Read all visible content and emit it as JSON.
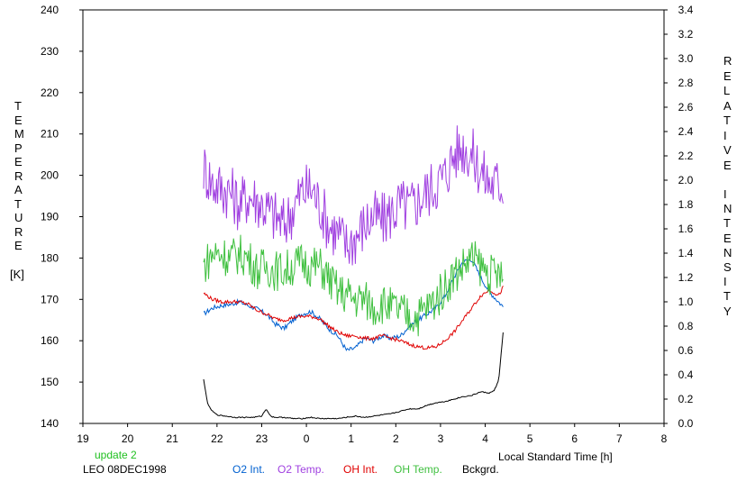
{
  "chart_data": {
    "type": "line",
    "title": "",
    "left_axis": {
      "label_letters": [
        "T",
        "E",
        "M",
        "P",
        "E",
        "R",
        "A",
        "T",
        "U",
        "R",
        "E"
      ],
      "unit": "[K]",
      "range": [
        140,
        240
      ],
      "ticks": [
        "140",
        "150",
        "160",
        "170",
        "180",
        "190",
        "200",
        "210",
        "220",
        "230",
        "240"
      ]
    },
    "right_axis": {
      "label_word1": [
        "R",
        "E",
        "L",
        "A",
        "T",
        "I",
        "V",
        "E"
      ],
      "label_word2": [
        "I",
        "N",
        "T",
        "E",
        "N",
        "S",
        "I",
        "T",
        "Y"
      ],
      "range": [
        0.0,
        3.4
      ],
      "ticks": [
        "0.0",
        "0.2",
        "0.4",
        "0.6",
        "0.8",
        "1.0",
        "1.2",
        "1.4",
        "1.6",
        "1.8",
        "2.0",
        "2.2",
        "2.4",
        "2.6",
        "2.8",
        "3.0",
        "3.2",
        "3.4"
      ]
    },
    "x_axis": {
      "label": "Local Standard Time [h]",
      "range": [
        19,
        32
      ],
      "ticks": [
        "19",
        "20",
        "21",
        "22",
        "23",
        "0",
        "1",
        "2",
        "3",
        "4",
        "5",
        "6",
        "7",
        "8"
      ]
    },
    "series": [
      {
        "name": "O2 Int.",
        "axis": "right",
        "color": "#0060d0",
        "x": [
          21.7,
          21.9,
          22.1,
          22.3,
          22.5,
          22.7,
          22.9,
          23.1,
          23.3,
          23.5,
          23.7,
          23.9,
          24.1,
          24.3,
          24.5,
          24.7,
          24.9,
          25.1,
          25.3,
          25.5,
          25.7,
          25.9,
          26.1,
          26.3,
          26.5,
          26.7,
          26.9,
          27.1,
          27.3,
          27.5,
          27.7,
          27.9,
          28.1,
          28.3,
          28.4
        ],
        "y": [
          0.9,
          0.95,
          0.97,
          0.98,
          1.0,
          0.97,
          0.94,
          0.9,
          0.82,
          0.78,
          0.85,
          0.9,
          0.92,
          0.86,
          0.78,
          0.72,
          0.6,
          0.62,
          0.7,
          0.68,
          0.72,
          0.7,
          0.72,
          0.8,
          0.85,
          0.9,
          0.95,
          1.05,
          1.2,
          1.33,
          1.35,
          1.2,
          1.08,
          1.0,
          0.96
        ]
      },
      {
        "name": "O2 Temp.",
        "axis": "left",
        "color": "#a040e0",
        "x": [
          21.7,
          21.9,
          22.1,
          22.3,
          22.5,
          22.7,
          22.9,
          23.1,
          23.3,
          23.5,
          23.7,
          23.9,
          24.1,
          24.3,
          24.5,
          24.7,
          24.9,
          25.1,
          25.3,
          25.5,
          25.7,
          25.9,
          26.1,
          26.3,
          26.5,
          26.7,
          26.9,
          27.1,
          27.3,
          27.5,
          27.7,
          27.9,
          28.1,
          28.3,
          28.4
        ],
        "y": [
          202,
          198,
          197,
          196,
          193,
          195,
          194,
          192,
          190,
          188,
          192,
          196,
          197,
          193,
          188,
          186,
          183,
          185,
          188,
          190,
          189,
          191,
          193,
          192,
          194,
          196,
          198,
          200,
          205,
          207,
          205,
          201,
          198,
          198,
          198
        ]
      },
      {
        "name": "OH Int.",
        "axis": "right",
        "color": "#e00000",
        "x": [
          21.7,
          21.9,
          22.1,
          22.3,
          22.5,
          22.7,
          22.9,
          23.1,
          23.3,
          23.5,
          23.7,
          23.9,
          24.1,
          24.3,
          24.5,
          24.7,
          24.9,
          25.1,
          25.3,
          25.5,
          25.7,
          25.9,
          26.1,
          26.3,
          26.5,
          26.7,
          26.9,
          27.1,
          27.3,
          27.5,
          27.7,
          27.9,
          28.1,
          28.3,
          28.4
        ],
        "y": [
          1.07,
          1.02,
          1.0,
          1.0,
          1.0,
          0.98,
          0.93,
          0.9,
          0.86,
          0.85,
          0.87,
          0.88,
          0.88,
          0.86,
          0.8,
          0.75,
          0.72,
          0.72,
          0.7,
          0.7,
          0.72,
          0.7,
          0.68,
          0.65,
          0.63,
          0.62,
          0.63,
          0.68,
          0.75,
          0.85,
          0.95,
          1.05,
          1.1,
          1.05,
          1.12
        ]
      },
      {
        "name": "OH Temp.",
        "axis": "left",
        "color": "#40c040",
        "x": [
          21.7,
          21.9,
          22.1,
          22.3,
          22.5,
          22.7,
          22.9,
          23.1,
          23.3,
          23.5,
          23.7,
          23.9,
          24.1,
          24.3,
          24.5,
          24.7,
          24.9,
          25.1,
          25.3,
          25.5,
          25.7,
          25.9,
          26.1,
          26.3,
          26.5,
          26.7,
          26.9,
          27.1,
          27.3,
          27.5,
          27.7,
          27.9,
          28.1,
          28.3,
          28.4
        ],
        "y": [
          178,
          181,
          181,
          180,
          181,
          180,
          177,
          178,
          177,
          177,
          178,
          179,
          178,
          178,
          175,
          172,
          171,
          170,
          170,
          168,
          169,
          168,
          167,
          166,
          166,
          168,
          170,
          173,
          176,
          178,
          180,
          178,
          176,
          176,
          174
        ]
      },
      {
        "name": "Bckgrd.",
        "axis": "right",
        "color": "#000000",
        "x": [
          21.7,
          21.75,
          21.8,
          21.9,
          22.0,
          22.2,
          22.4,
          22.6,
          22.8,
          23.0,
          23.1,
          23.2,
          23.3,
          23.5,
          23.7,
          23.9,
          24.1,
          24.3,
          24.5,
          24.7,
          24.9,
          25.1,
          25.3,
          25.5,
          25.7,
          25.9,
          26.1,
          26.3,
          26.5,
          26.7,
          26.9,
          27.1,
          27.3,
          27.5,
          27.7,
          27.9,
          28.1,
          28.2,
          28.3,
          28.35,
          28.4
        ],
        "y": [
          0.36,
          0.25,
          0.15,
          0.1,
          0.07,
          0.06,
          0.05,
          0.05,
          0.05,
          0.06,
          0.12,
          0.06,
          0.05,
          0.05,
          0.04,
          0.04,
          0.05,
          0.04,
          0.04,
          0.04,
          0.05,
          0.06,
          0.05,
          0.06,
          0.07,
          0.08,
          0.1,
          0.12,
          0.12,
          0.15,
          0.17,
          0.18,
          0.2,
          0.22,
          0.23,
          0.26,
          0.25,
          0.27,
          0.35,
          0.55,
          0.75
        ]
      }
    ]
  },
  "footer": {
    "update_text": "update 2",
    "update_color": "#20c020",
    "station": "LEO 08DEC1998"
  }
}
